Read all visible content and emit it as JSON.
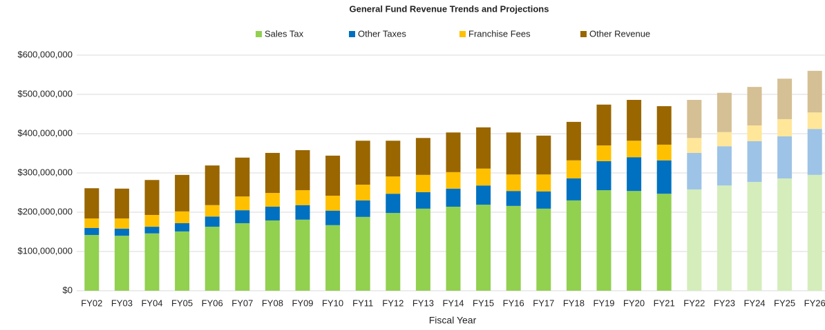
{
  "chart_data": {
    "type": "stacked_bar",
    "title": "General Fund Revenue Trends and Projections",
    "x_label": "Fiscal Year",
    "categories": [
      "FY02",
      "FY03",
      "FY04",
      "FY05",
      "FY06",
      "FY07",
      "FY08",
      "FY09",
      "FY10",
      "FY11",
      "FY12",
      "FY13",
      "FY14",
      "FY15",
      "FY16",
      "FY17",
      "FY18",
      "FY19",
      "FY20",
      "FY21",
      "FY22",
      "FY23",
      "FY24",
      "FY25",
      "FY26"
    ],
    "projected_from": "FY22",
    "series": [
      {
        "name": "Sales Tax",
        "color": "#92d050",
        "projected_color": "#d4edbb",
        "values": [
          142000000,
          140000000,
          146000000,
          151000000,
          163000000,
          172000000,
          179000000,
          181000000,
          167000000,
          188000000,
          198000000,
          209000000,
          214000000,
          219000000,
          216000000,
          209000000,
          230000000,
          256000000,
          254000000,
          247000000,
          258000000,
          268000000,
          277000000,
          286000000,
          295000000
        ]
      },
      {
        "name": "Other Taxes",
        "color": "#0070c0",
        "projected_color": "#9dc3e6",
        "values": [
          18000000,
          18000000,
          17000000,
          21000000,
          26000000,
          33000000,
          35000000,
          37000000,
          37000000,
          42000000,
          49000000,
          42000000,
          46000000,
          49000000,
          38000000,
          44000000,
          56000000,
          74000000,
          86000000,
          85000000,
          93000000,
          100000000,
          104000000,
          107000000,
          117000000
        ]
      },
      {
        "name": "Franchise Fees",
        "color": "#ffc000",
        "projected_color": "#ffe699",
        "values": [
          24000000,
          26000000,
          30000000,
          30000000,
          29000000,
          35000000,
          35000000,
          38000000,
          38000000,
          40000000,
          44000000,
          44000000,
          42000000,
          43000000,
          42000000,
          43000000,
          46000000,
          40000000,
          42000000,
          40000000,
          38000000,
          36000000,
          40000000,
          44000000,
          42000000
        ]
      },
      {
        "name": "Other Revenue",
        "color": "#996600",
        "projected_color": "#d5bf94",
        "values": [
          77000000,
          76000000,
          89000000,
          93000000,
          101000000,
          99000000,
          102000000,
          102000000,
          102000000,
          112000000,
          91000000,
          94000000,
          101000000,
          105000000,
          107000000,
          99000000,
          98000000,
          104000000,
          104000000,
          98000000,
          97000000,
          100000000,
          98000000,
          103000000,
          106000000
        ]
      }
    ],
    "ylim": [
      0,
      600000000
    ],
    "yticks": [
      {
        "value": 0,
        "label": "$0"
      },
      {
        "value": 100000000,
        "label": "$100,000,000"
      },
      {
        "value": 200000000,
        "label": "$200,000,000"
      },
      {
        "value": 300000000,
        "label": "$300,000,000"
      },
      {
        "value": 400000000,
        "label": "$400,000,000"
      },
      {
        "value": 500000000,
        "label": "$500,000,000"
      },
      {
        "value": 600000000,
        "label": "$600,000,000"
      }
    ],
    "grid": true,
    "legend": "top"
  }
}
